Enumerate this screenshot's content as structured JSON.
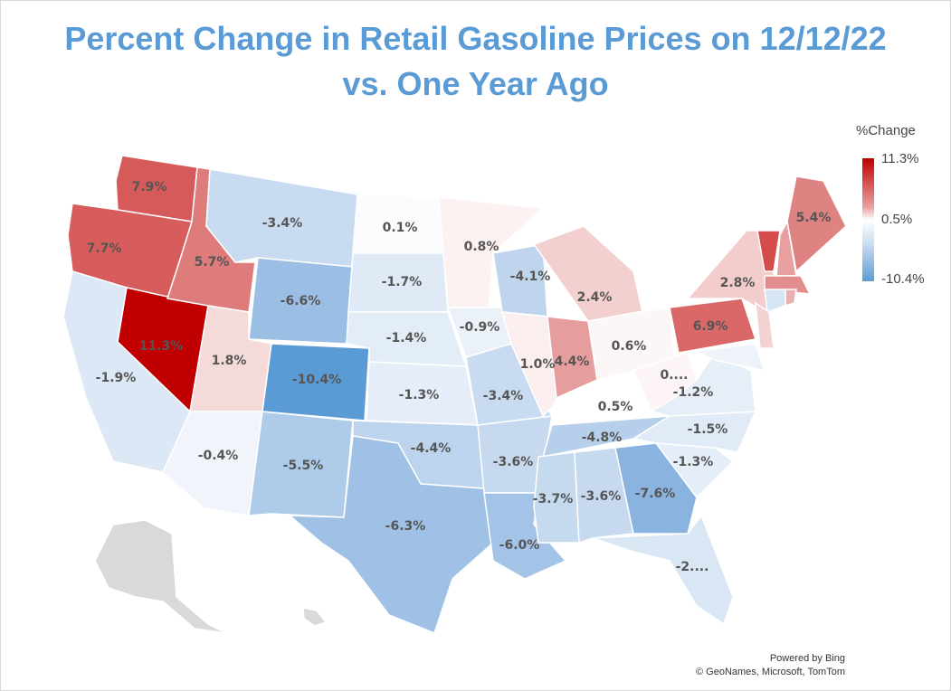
{
  "title_line1": "Percent Change in Retail Gasoline Prices on 12/12/22",
  "title_line2": "vs. One Year Ago",
  "legend": {
    "title": "%Change",
    "max": "11.3%",
    "mid": "0.5%",
    "min": "-10.4%",
    "max_color": "#c00000",
    "mid_color": "#ffffff",
    "min_color": "#5b9bd5"
  },
  "credits": {
    "line1": "Powered by Bing",
    "line2": "© GeoNames, Microsoft, TomTom"
  },
  "states": [
    {
      "id": "WA",
      "label": "7.9%",
      "value": 7.9,
      "color": "#d75a5a"
    },
    {
      "id": "OR",
      "label": "7.7%",
      "value": 7.7,
      "color": "#d75c5c"
    },
    {
      "id": "CA",
      "label": "-1.9%",
      "value": -1.9,
      "color": "#dce8f5"
    },
    {
      "id": "NV",
      "label": "11.3%",
      "value": 11.3,
      "color": "#c00000"
    },
    {
      "id": "ID",
      "label": "5.7%",
      "value": 5.7,
      "color": "#de7c7c"
    },
    {
      "id": "MT",
      "label": "-3.4%",
      "value": -3.4,
      "color": "#c8dbf0"
    },
    {
      "id": "WY",
      "label": "-6.6%",
      "value": -6.6,
      "color": "#9bbfe4"
    },
    {
      "id": "UT",
      "label": "1.8%",
      "value": 1.8,
      "color": "#f5dada"
    },
    {
      "id": "CO",
      "label": "-10.4%",
      "value": -10.4,
      "color": "#5b9bd5"
    },
    {
      "id": "AZ",
      "label": "-0.4%",
      "value": -0.4,
      "color": "#f1f5fb"
    },
    {
      "id": "NM",
      "label": "-5.5%",
      "value": -5.5,
      "color": "#aecbea"
    },
    {
      "id": "ND",
      "label": "0.1%",
      "value": 0.1,
      "color": "#fbfcfe"
    },
    {
      "id": "SD",
      "label": "-1.7%",
      "value": -1.7,
      "color": "#dfeaf6"
    },
    {
      "id": "NE",
      "label": "-1.4%",
      "value": -1.4,
      "color": "#e3edf7"
    },
    {
      "id": "KS",
      "label": "-1.3%",
      "value": -1.3,
      "color": "#e4edf8"
    },
    {
      "id": "OK",
      "label": "-4.4%",
      "value": -4.4,
      "color": "#bcd4ed"
    },
    {
      "id": "TX",
      "label": "-6.3%",
      "value": -6.3,
      "color": "#9fc1e5"
    },
    {
      "id": "MN",
      "label": "0.8%",
      "value": 0.8,
      "color": "#fcf2f2"
    },
    {
      "id": "IA",
      "label": "-0.9%",
      "value": -0.9,
      "color": "#ebf1f9"
    },
    {
      "id": "MO",
      "label": "-3.4%",
      "value": -3.4,
      "color": "#c8dbf0"
    },
    {
      "id": "AR",
      "label": "-3.6%",
      "value": -3.6,
      "color": "#c6d9ef"
    },
    {
      "id": "LA",
      "label": "-6.0%",
      "value": -6.0,
      "color": "#a3c4e6"
    },
    {
      "id": "WI",
      "label": "-4.1%",
      "value": -4.1,
      "color": "#bed5ed"
    },
    {
      "id": "IL",
      "label": "1.0%",
      "value": 1.0,
      "color": "#fbeeee"
    },
    {
      "id": "MI",
      "label": "2.4%",
      "value": 2.4,
      "color": "#f3d0d0"
    },
    {
      "id": "IN",
      "label": "4.4%",
      "value": 4.4,
      "color": "#e69d9d"
    },
    {
      "id": "OH",
      "label": "0.6%",
      "value": 0.6,
      "color": "#fdf6f6"
    },
    {
      "id": "KY",
      "label": "0.5%",
      "value": 0.5,
      "color": "#ffffff"
    },
    {
      "id": "WV",
      "label": "0....",
      "value": null,
      "color": "#fdf5f5"
    },
    {
      "id": "TN",
      "label": "-4.8%",
      "value": -4.8,
      "color": "#b6d0eb"
    },
    {
      "id": "MS",
      "label": "-3.7%",
      "value": -3.7,
      "color": "#c5d9ef"
    },
    {
      "id": "AL",
      "label": "-3.6%",
      "value": -3.6,
      "color": "#c6d9ef"
    },
    {
      "id": "GA",
      "label": "-7.6%",
      "value": -7.6,
      "color": "#8ab4df"
    },
    {
      "id": "FL",
      "label": "-2....",
      "value": null,
      "color": "#d9e7f5"
    },
    {
      "id": "SC",
      "label": "-1.3%",
      "value": -1.3,
      "color": "#e4edf8"
    },
    {
      "id": "NC",
      "label": "-1.5%",
      "value": -1.5,
      "color": "#e1ebf7"
    },
    {
      "id": "VA",
      "label": "-1.2%",
      "value": -1.2,
      "color": "#e6eef8"
    },
    {
      "id": "PA",
      "label": "6.9%",
      "value": 6.9,
      "color": "#da6868"
    },
    {
      "id": "NY",
      "label": "2.8%",
      "value": 2.8,
      "color": "#f3cccc"
    },
    {
      "id": "VT",
      "label": "",
      "value": null,
      "color": "#d44c4c"
    },
    {
      "id": "NH",
      "label": "",
      "value": null,
      "color": "#e89f9f"
    },
    {
      "id": "ME",
      "label": "5.4%",
      "value": 5.4,
      "color": "#df8282"
    },
    {
      "id": "MA",
      "label": "",
      "value": null,
      "color": "#e38e8e"
    },
    {
      "id": "CT",
      "label": "",
      "value": null,
      "color": "#d6e5f4"
    },
    {
      "id": "RI",
      "label": "",
      "value": null,
      "color": "#eab0b0"
    },
    {
      "id": "NJ",
      "label": "",
      "value": null,
      "color": "#f3d2d2"
    },
    {
      "id": "MD",
      "label": "",
      "value": null,
      "color": "#eef3fa"
    },
    {
      "id": "AK",
      "label": "",
      "value": null,
      "color": "#d9d9d9"
    },
    {
      "id": "HI",
      "label": "",
      "value": null,
      "color": "#d9d9d9"
    }
  ]
}
